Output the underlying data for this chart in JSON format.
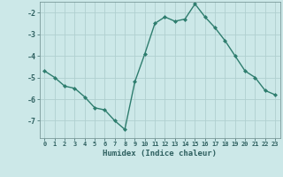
{
  "x": [
    0,
    1,
    2,
    3,
    4,
    5,
    6,
    7,
    8,
    9,
    10,
    11,
    12,
    13,
    14,
    15,
    16,
    17,
    18,
    19,
    20,
    21,
    22,
    23
  ],
  "y": [
    -4.7,
    -5.0,
    -5.4,
    -5.5,
    -5.9,
    -6.4,
    -6.5,
    -7.0,
    -7.4,
    -5.2,
    -3.9,
    -2.5,
    -2.2,
    -2.4,
    -2.3,
    -1.6,
    -2.2,
    -2.7,
    -3.3,
    -4.0,
    -4.7,
    -5.0,
    -5.6,
    -5.8
  ],
  "line_color": "#2e7d6e",
  "marker_color": "#2e7d6e",
  "bg_color": "#cce8e8",
  "grid_color": "#b0d0d0",
  "axis_label_color": "#2e6060",
  "tick_color": "#2e6060",
  "xlabel": "Humidex (Indice chaleur)",
  "ylim": [
    -7.8,
    -1.5
  ],
  "xlim": [
    -0.5,
    23.5
  ],
  "yticks": [
    -7,
    -6,
    -5,
    -4,
    -3,
    -2
  ],
  "xticks": [
    0,
    1,
    2,
    3,
    4,
    5,
    6,
    7,
    8,
    9,
    10,
    11,
    12,
    13,
    14,
    15,
    16,
    17,
    18,
    19,
    20,
    21,
    22,
    23
  ]
}
